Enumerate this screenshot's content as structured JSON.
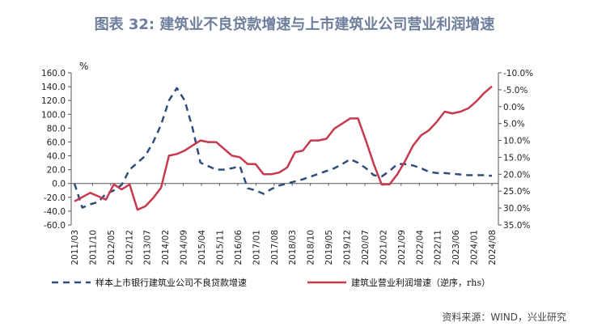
{
  "title": "图表 32: 建筑业不良贷款增速与上市建筑业公司营业利润增速",
  "source": "资料来源：WIND，兴业研究",
  "chart_data": {
    "type": "line",
    "unit_label": "%",
    "categories": [
      "2011/03",
      "2011/10",
      "2012/05",
      "2012/12",
      "2013/07",
      "2014/02",
      "2014/09",
      "2015/04",
      "2015/11",
      "2016/06",
      "2017/01",
      "2017/08",
      "2018/03",
      "2018/10",
      "2019/05",
      "2019/12",
      "2020/07",
      "2021/02",
      "2021/09",
      "2022/04",
      "2022/11",
      "2023/06",
      "2024/01",
      "2024/08"
    ],
    "left_axis": {
      "min": -60,
      "max": 160,
      "step": 20,
      "tick_labels": [
        "-60.0",
        "-40.0",
        "-20.0",
        "0.0",
        "20.0",
        "40.0",
        "60.0",
        "80.0",
        "100.0",
        "120.0",
        "140.0",
        "160.0"
      ]
    },
    "right_axis": {
      "min": -10,
      "max": 35,
      "step": 5,
      "reversed": true,
      "tick_labels": [
        "-10.0%",
        "-5.0%",
        "0.0%",
        "5.0%",
        "10.0%",
        "15.0%",
        "20.0%",
        "25.0%",
        "30.0%",
        "35.0%"
      ]
    },
    "series": [
      {
        "name": "样本上市银行建筑业公司不良贷款增速",
        "axis": "left",
        "style": "dashed",
        "color": "#2e4d7b",
        "x": [
          0,
          2,
          4,
          6,
          8,
          10,
          12,
          14,
          16,
          18,
          20,
          22,
          24,
          26,
          28,
          30,
          32,
          34,
          36,
          38,
          40,
          42,
          44,
          46,
          48,
          50,
          52,
          54,
          56,
          58,
          60,
          62,
          64,
          66,
          68,
          70,
          72,
          74,
          76,
          78,
          80,
          82,
          84,
          86,
          88,
          90,
          92,
          94,
          96,
          98,
          100,
          102,
          104,
          106
        ],
        "values": [
          0,
          -35,
          -30,
          -27,
          -15,
          -10,
          -2,
          20,
          30,
          40,
          60,
          85,
          120,
          138,
          120,
          80,
          30,
          25,
          20,
          20,
          22,
          25,
          -7,
          -10,
          -15,
          -8,
          -3,
          0,
          3,
          6,
          10,
          14,
          18,
          22,
          28,
          35,
          30,
          22,
          12,
          10,
          18,
          28,
          28,
          26,
          22,
          17,
          15,
          15,
          14,
          13,
          12,
          12,
          12,
          11
        ]
      },
      {
        "name": "建筑业营业利润增速（逆序，rhs）",
        "axis": "right",
        "style": "solid",
        "color": "#c7394f",
        "x": [
          0,
          4,
          6,
          8,
          10,
          12,
          14,
          16,
          18,
          20,
          22,
          24,
          26,
          28,
          30,
          32,
          34,
          36,
          38,
          40,
          42,
          44,
          46,
          48,
          50,
          52,
          54,
          56,
          58,
          60,
          62,
          64,
          66,
          68,
          70,
          72,
          74,
          76,
          78,
          80,
          82,
          84,
          86,
          88,
          90,
          92,
          94,
          96,
          98,
          100,
          102,
          104,
          106
        ],
        "values": [
          28.0,
          25.5,
          26.5,
          27.5,
          23.0,
          24.5,
          23.0,
          30.5,
          29.5,
          27.0,
          24.0,
          14.5,
          14.0,
          13.0,
          11.5,
          10.0,
          10.5,
          10.5,
          12.5,
          14.5,
          15.0,
          17.0,
          17.0,
          20.0,
          20.0,
          19.5,
          18.0,
          13.5,
          13.0,
          10.0,
          10.0,
          9.5,
          6.5,
          5.0,
          3.5,
          3.5,
          10.0,
          17.0,
          23.0,
          23.0,
          20.0,
          16.0,
          11.5,
          8.5,
          7.0,
          4.5,
          1.5,
          2.0,
          1.5,
          0.5,
          -1.5,
          -4.0,
          -6.0
        ]
      }
    ],
    "total_months": 106,
    "grid": false,
    "legend_position": "bottom"
  }
}
